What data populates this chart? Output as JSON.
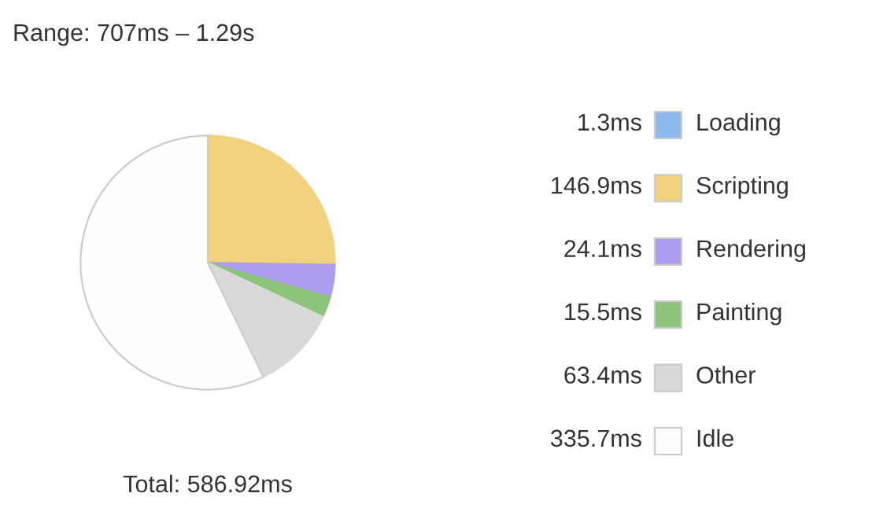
{
  "chart_data": {
    "type": "pie",
    "title": "Range: 707ms – 1.29s",
    "categories": [
      "Loading",
      "Scripting",
      "Rendering",
      "Painting",
      "Other",
      "Idle"
    ],
    "values": [
      1.3,
      146.9,
      24.1,
      15.5,
      63.4,
      335.7
    ],
    "value_labels": [
      "1.3ms",
      "146.9ms",
      "24.1ms",
      "15.5ms",
      "63.4ms",
      "335.7ms"
    ],
    "colors": [
      "#8cb8ec",
      "#f2d27c",
      "#ad9cf0",
      "#8cc47c",
      "#d9d9d9",
      "#fefefe"
    ],
    "annotations": [
      "Total: 586.92ms"
    ],
    "legend": "right"
  }
}
